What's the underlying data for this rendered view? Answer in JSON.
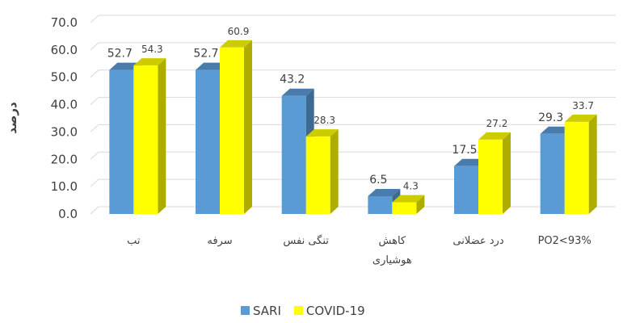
{
  "chart_data": {
    "type": "bar3d",
    "y_label": "درصد",
    "categories": [
      "تب",
      "سرفه",
      "تنگی نفس",
      "کاهش هوشیاری",
      "درد عضلانی",
      "PO2<93%"
    ],
    "series": [
      {
        "name": "SARI",
        "color": "#5b9bd5",
        "values": [
          52.7,
          52.7,
          43.2,
          6.5,
          17.5,
          29.3
        ]
      },
      {
        "name": "COVID-19",
        "color": "#ffff00",
        "values": [
          54.3,
          60.9,
          28.3,
          4.3,
          27.2,
          33.7
        ]
      }
    ],
    "ylim": [
      0,
      70
    ],
    "yticks": [
      {
        "value": 0,
        "label": "0.0"
      },
      {
        "value": 10,
        "label": "10.0"
      },
      {
        "value": 20,
        "label": "20.0"
      },
      {
        "value": 30,
        "label": "30.0"
      },
      {
        "value": 40,
        "label": "40.0"
      },
      {
        "value": 50,
        "label": "50.0"
      },
      {
        "value": 60,
        "label": "60.0"
      },
      {
        "value": 70,
        "label": "70.0"
      }
    ],
    "grid": true,
    "legend": "bottom"
  }
}
